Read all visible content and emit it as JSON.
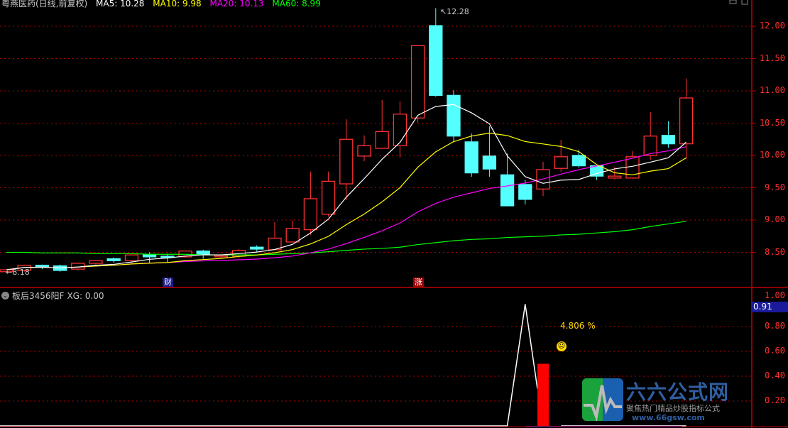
{
  "header": {
    "title": "粤燕医药(日线,前复权)",
    "ma5": "MA5: 10.28",
    "ma10": "MA10: 9.98",
    "ma20": "MA20: 10.13",
    "ma60": "MA60: 8.99"
  },
  "colors": {
    "up": "#ff3232",
    "down": "#54ffff",
    "ma5": "#ffffff",
    "ma10": "#ffff00",
    "ma20": "#ff00ff",
    "ma60": "#00ff00",
    "grid": "#b00000",
    "axis": "#ff3030"
  },
  "markers": {
    "high_label": "12.28",
    "low_label": "8.18",
    "tag_cai": "财",
    "tag_zhang": "涨"
  },
  "indicator": {
    "title": "板后3456阳F",
    "xg": "XG: 0.00",
    "current_value": "0.91",
    "pct_label": "4.806",
    "pct_unit": "%",
    "smiley": "☺"
  },
  "logo": {
    "name": "六六公式网",
    "slogan": "聚焦热门精品炒股指标公式",
    "url": "www.66gsw.com"
  },
  "chart_data": [
    {
      "type": "candlestick",
      "y_ticks": [
        "12.00",
        "11.50",
        "11.00",
        "10.50",
        "10.00",
        "9.50",
        "9.00",
        "8.50"
      ],
      "ylim": [
        8.1,
        12.4
      ],
      "grid": true,
      "candles": [
        [
          8.2,
          8.23,
          8.23,
          8.18
        ],
        [
          8.22,
          8.3,
          8.31,
          8.2
        ],
        [
          8.3,
          8.28,
          8.31,
          8.24
        ],
        [
          8.29,
          8.22,
          8.31,
          8.2
        ],
        [
          8.24,
          8.33,
          8.33,
          8.22
        ],
        [
          8.33,
          8.37,
          8.37,
          8.31
        ],
        [
          8.4,
          8.37,
          8.42,
          8.34
        ],
        [
          8.37,
          8.46,
          8.46,
          8.34
        ],
        [
          8.47,
          8.43,
          8.5,
          8.34
        ],
        [
          8.44,
          8.43,
          8.48,
          8.34
        ],
        [
          8.43,
          8.52,
          8.52,
          8.42
        ],
        [
          8.52,
          8.47,
          8.54,
          8.4
        ],
        [
          8.43,
          8.45,
          8.47,
          8.4
        ],
        [
          8.44,
          8.53,
          8.55,
          8.41
        ],
        [
          8.58,
          8.55,
          8.61,
          8.51
        ],
        [
          8.54,
          8.72,
          8.97,
          8.53
        ],
        [
          8.66,
          8.87,
          8.99,
          8.66
        ],
        [
          8.85,
          9.33,
          9.75,
          8.77
        ],
        [
          9.09,
          9.6,
          9.75,
          9.05
        ],
        [
          9.56,
          10.25,
          10.56,
          9.31
        ],
        [
          9.99,
          10.15,
          10.31,
          9.91
        ],
        [
          10.11,
          10.37,
          10.86,
          10.11
        ],
        [
          10.15,
          10.64,
          10.84,
          9.97
        ],
        [
          10.58,
          11.7,
          11.7,
          10.51
        ],
        [
          12.01,
          10.93,
          12.28,
          10.91
        ],
        [
          10.93,
          10.3,
          11.01,
          10.22
        ],
        [
          10.21,
          9.73,
          10.34,
          9.67
        ],
        [
          9.99,
          9.79,
          10.45,
          9.67
        ],
        [
          9.7,
          9.22,
          10.03,
          9.22
        ],
        [
          9.55,
          9.32,
          9.62,
          9.24
        ],
        [
          9.48,
          9.78,
          9.9,
          9.37
        ],
        [
          9.8,
          9.98,
          10.24,
          9.75
        ],
        [
          10.0,
          9.84,
          10.09,
          9.81
        ],
        [
          9.84,
          9.68,
          9.84,
          9.62
        ],
        [
          9.65,
          9.68,
          9.82,
          9.63
        ],
        [
          9.65,
          9.98,
          10.07,
          9.64
        ],
        [
          10.0,
          10.3,
          10.67,
          9.93
        ],
        [
          10.31,
          10.18,
          10.53,
          10.12
        ],
        [
          10.18,
          10.89,
          11.19,
          9.94
        ]
      ],
      "candle_fields": [
        "open",
        "close",
        "high",
        "low"
      ],
      "ma60": [
        8.5,
        8.5,
        8.49,
        8.49,
        8.49,
        8.48,
        8.48,
        8.48,
        8.47,
        8.47,
        8.47,
        8.46,
        8.46,
        8.46,
        8.46,
        8.47,
        8.48,
        8.49,
        8.51,
        8.53,
        8.55,
        8.56,
        8.58,
        8.62,
        8.65,
        8.68,
        8.7,
        8.71,
        8.73,
        8.74,
        8.75,
        8.77,
        8.78,
        8.8,
        8.82,
        8.85,
        8.9,
        8.94,
        8.98
      ]
    },
    {
      "type": "line+bar",
      "y_ticks": [
        "1.00",
        "0.80",
        "0.60",
        "0.40",
        "0.20"
      ],
      "ylim": [
        0,
        1.0
      ],
      "line": [
        0,
        0,
        0,
        0,
        0,
        0,
        0,
        0,
        0,
        0,
        0,
        0,
        0,
        0,
        0,
        0,
        0,
        0,
        0,
        0,
        0,
        0,
        0,
        0,
        0,
        0,
        0,
        0,
        0,
        0.98,
        0.3,
        null,
        null,
        null,
        null,
        null,
        null,
        null,
        null
      ],
      "bar_index": 30,
      "bar_value": 0.5
    }
  ]
}
